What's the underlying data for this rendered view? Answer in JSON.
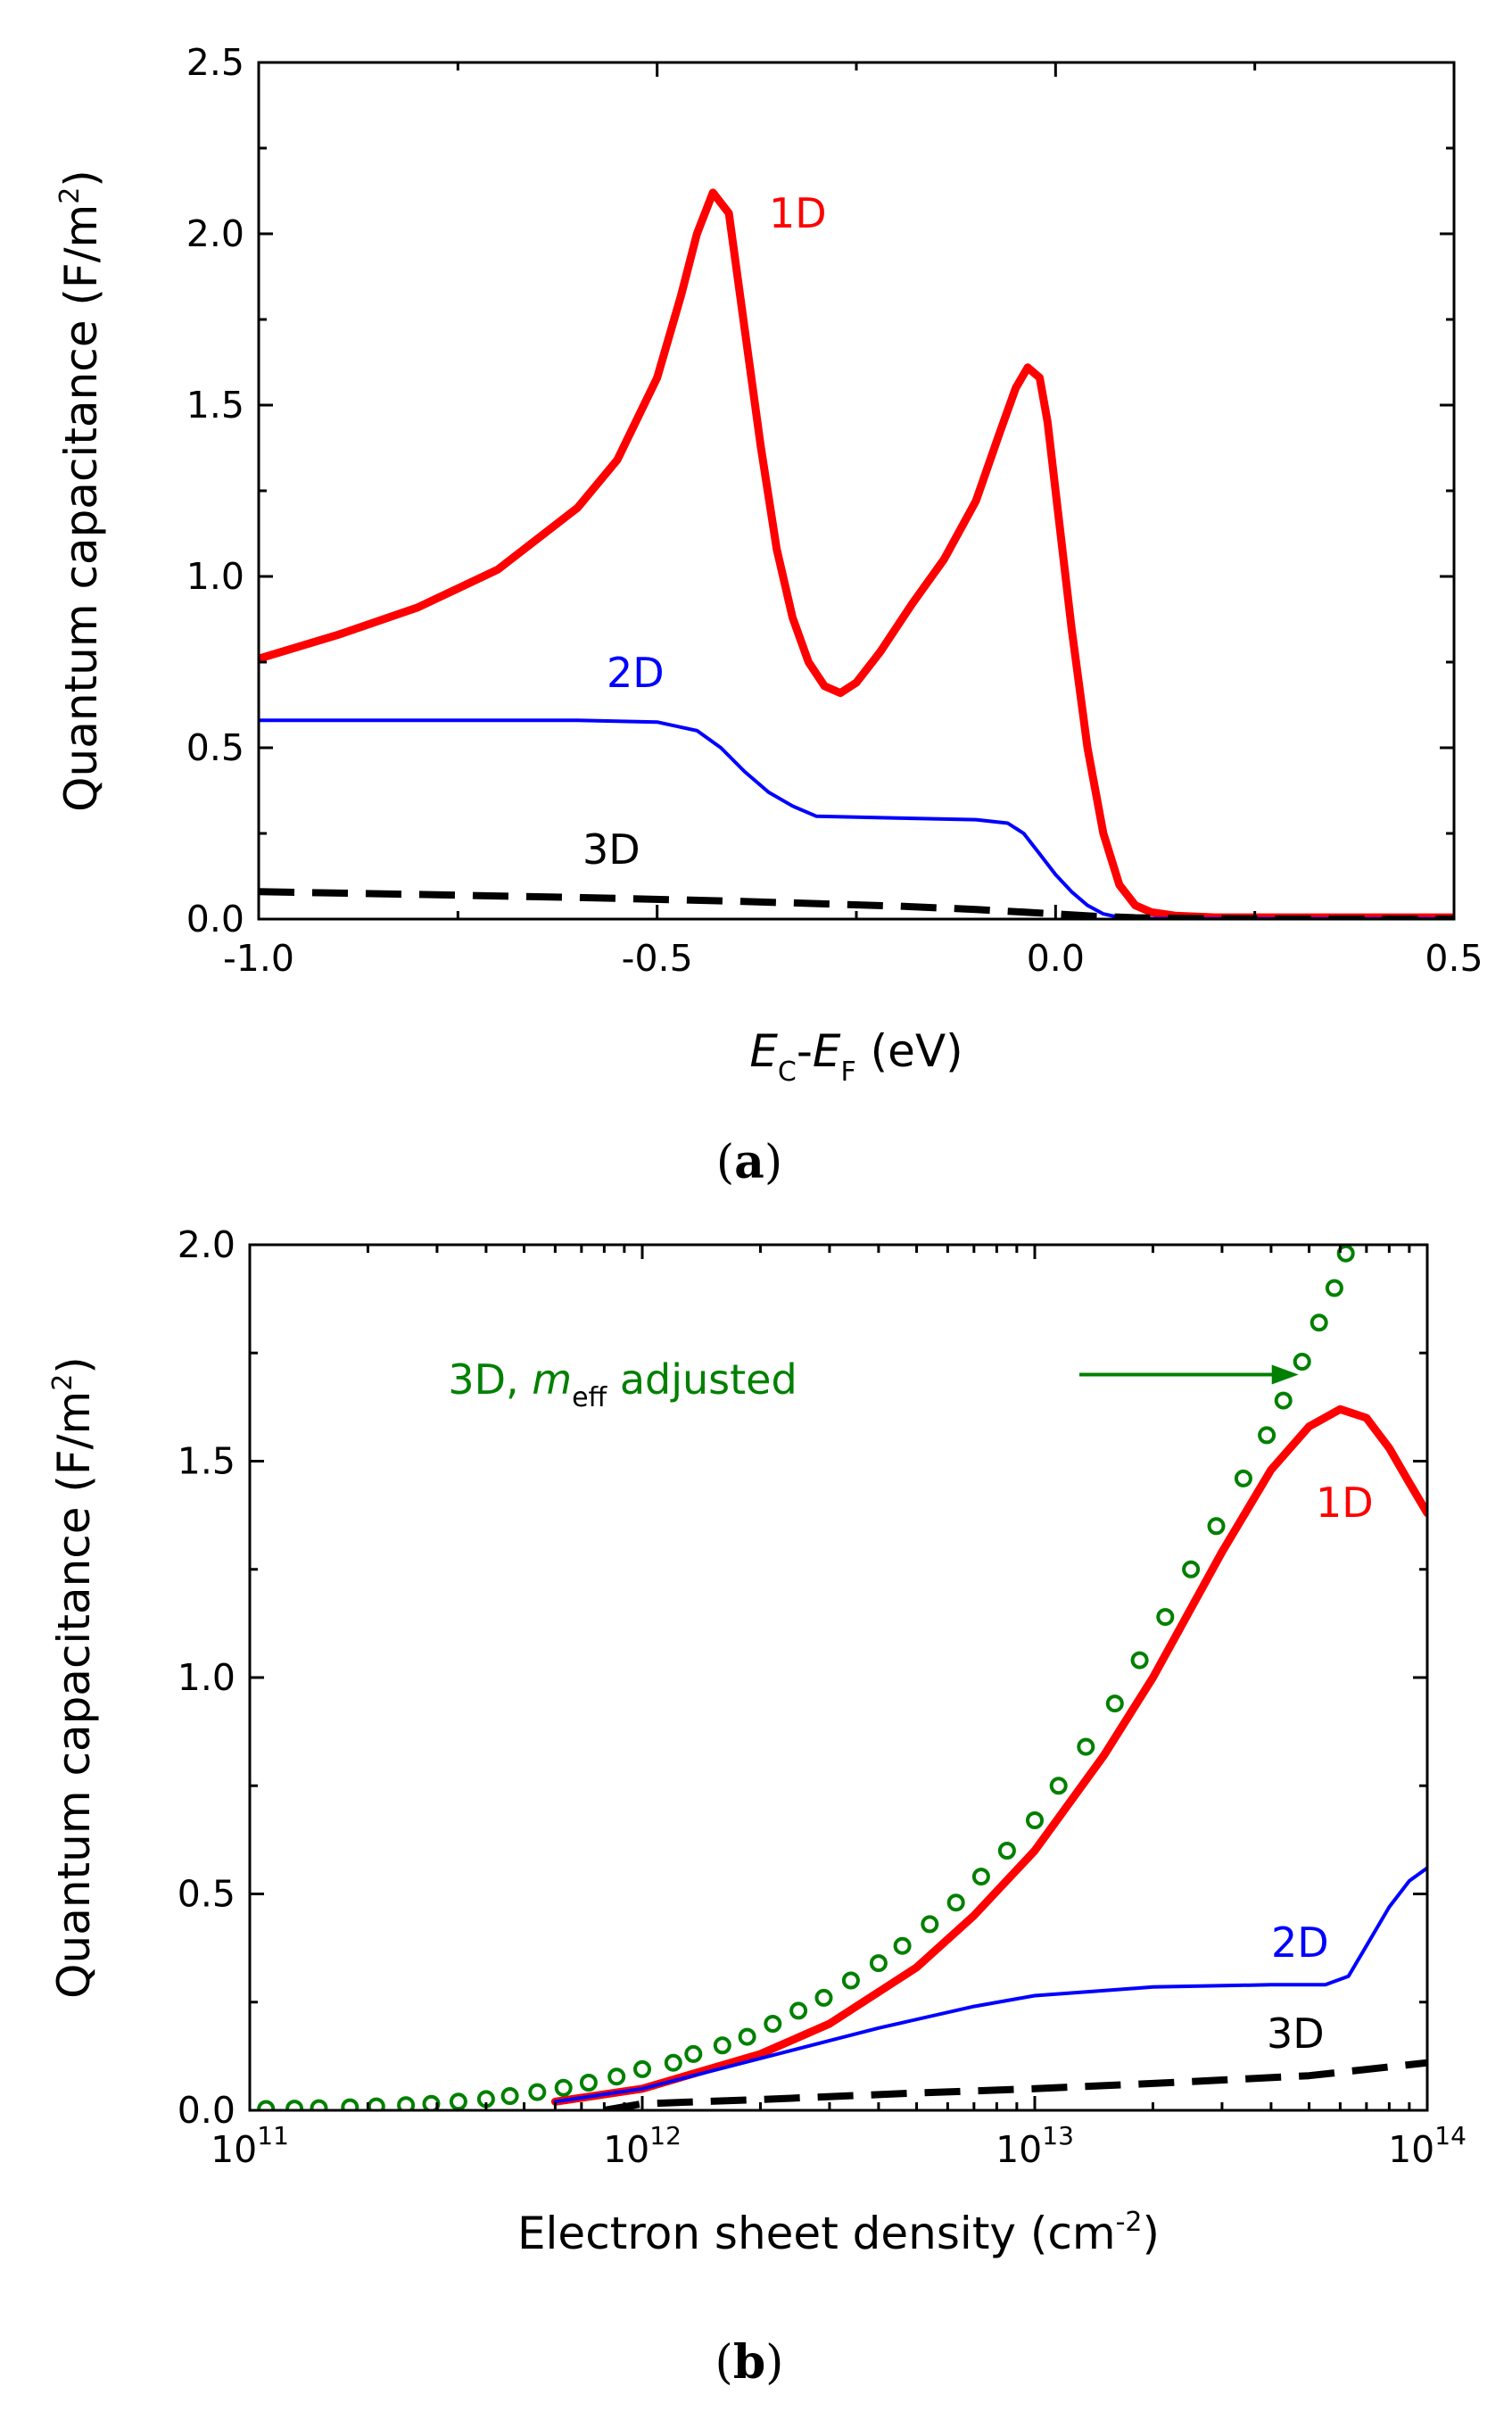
{
  "chart_data": [
    {
      "panel_label": "a",
      "type": "line",
      "xlabel": {
        "e1": "E",
        "s1": "C",
        "mid": "-",
        "e2": "E",
        "s2": "F",
        "unit": " (eV)"
      },
      "ylabel": {
        "main": "Quantum capacitance (F/m",
        "sup": "2",
        "close": ")"
      },
      "xlim": [
        -1.0,
        0.5
      ],
      "ylim": [
        0.0,
        2.5
      ],
      "x_ticks": [
        -1.0,
        -0.5,
        0.0,
        0.5
      ],
      "x_tick_labels": [
        "-1.0",
        "-0.5",
        "0.0",
        "0.5"
      ],
      "y_ticks": [
        0.0,
        0.5,
        1.0,
        1.5,
        2.0,
        2.5
      ],
      "y_tick_labels": [
        "0.0",
        "0.5",
        "1.0",
        "1.5",
        "2.0",
        "2.5"
      ],
      "series": [
        {
          "name": "1D",
          "color": "#ff0000",
          "style": "solid",
          "x": [
            -1.0,
            -0.9,
            -0.8,
            -0.7,
            -0.6,
            -0.55,
            -0.5,
            -0.47,
            -0.45,
            -0.43,
            -0.41,
            -0.39,
            -0.37,
            -0.35,
            -0.33,
            -0.31,
            -0.29,
            -0.27,
            -0.25,
            -0.22,
            -0.18,
            -0.14,
            -0.1,
            -0.07,
            -0.05,
            -0.035,
            -0.02,
            -0.01,
            0.0,
            0.02,
            0.04,
            0.06,
            0.08,
            0.1,
            0.12,
            0.15,
            0.2,
            0.3,
            0.4,
            0.5
          ],
          "y": [
            0.76,
            0.83,
            0.91,
            1.02,
            1.2,
            1.34,
            1.58,
            1.82,
            2.0,
            2.12,
            2.06,
            1.72,
            1.38,
            1.08,
            0.88,
            0.75,
            0.68,
            0.66,
            0.69,
            0.78,
            0.92,
            1.05,
            1.22,
            1.42,
            1.55,
            1.61,
            1.58,
            1.45,
            1.25,
            0.85,
            0.5,
            0.25,
            0.1,
            0.04,
            0.02,
            0.01,
            0.005,
            0.005,
            0.005,
            0.005
          ]
        },
        {
          "name": "2D",
          "color": "#0000ff",
          "style": "solid",
          "x": [
            -1.0,
            -0.8,
            -0.6,
            -0.5,
            -0.45,
            -0.42,
            -0.39,
            -0.36,
            -0.33,
            -0.3,
            -0.2,
            -0.1,
            -0.06,
            -0.04,
            -0.02,
            0.0,
            0.02,
            0.04,
            0.06,
            0.08,
            0.1,
            0.15,
            0.3,
            0.5
          ],
          "y": [
            0.58,
            0.58,
            0.58,
            0.575,
            0.55,
            0.5,
            0.43,
            0.37,
            0.33,
            0.3,
            0.295,
            0.29,
            0.28,
            0.25,
            0.19,
            0.13,
            0.08,
            0.04,
            0.015,
            0.005,
            0.002,
            0.001,
            0.001,
            0.001
          ]
        },
        {
          "name": "3D",
          "color": "#000000",
          "style": "dashed",
          "x": [
            -1.0,
            -0.8,
            -0.6,
            -0.4,
            -0.2,
            -0.1,
            0.0,
            0.05,
            0.1,
            0.2,
            0.3,
            0.5
          ],
          "y": [
            0.08,
            0.072,
            0.063,
            0.052,
            0.038,
            0.028,
            0.015,
            0.008,
            0.004,
            0.001,
            0.0,
            0.0
          ]
        }
      ]
    },
    {
      "panel_label": "b",
      "type": "line",
      "xscale": "log",
      "xlabel": {
        "main": "Electron sheet density (cm",
        "sup": "-2",
        "close": ")"
      },
      "ylabel": {
        "main": "Quantum capacitance (F/m",
        "sup": "2",
        "close": ")"
      },
      "xlim": [
        100000000000.0,
        100000000000000.0
      ],
      "ylim": [
        0.0,
        2.0
      ],
      "x_ticks": [
        100000000000.0,
        1000000000000.0,
        10000000000000.0,
        100000000000000.0
      ],
      "x_tick_labels": [
        {
          "base": "10",
          "exp": "11"
        },
        {
          "base": "10",
          "exp": "12"
        },
        {
          "base": "10",
          "exp": "13"
        },
        {
          "base": "10",
          "exp": "14"
        }
      ],
      "y_ticks": [
        0.0,
        0.5,
        1.0,
        1.5,
        2.0
      ],
      "y_tick_labels": [
        "0.0",
        "0.5",
        "1.0",
        "1.5",
        "2.0"
      ],
      "annotation": {
        "pre": "3D, ",
        "m": "m",
        "sub": "eff",
        "post": " adjusted",
        "arrow_to_x": 47000000000000.0,
        "arrow_to_y": 1.7
      },
      "series": [
        {
          "name": "1D",
          "color": "#ff0000",
          "style": "solid",
          "x": [
            600000000000.0,
            1000000000000.0,
            2000000000000.0,
            3000000000000.0,
            5000000000000.0,
            7000000000000.0,
            10000000000000.0,
            15000000000000.0,
            20000000000000.0,
            30000000000000.0,
            40000000000000.0,
            50000000000000.0,
            60000000000000.0,
            70000000000000.0,
            80000000000000.0,
            90000000000000.0,
            100000000000000.0
          ],
          "y": [
            0.02,
            0.05,
            0.13,
            0.2,
            0.33,
            0.45,
            0.6,
            0.82,
            1.0,
            1.29,
            1.48,
            1.58,
            1.62,
            1.6,
            1.53,
            1.45,
            1.38
          ]
        },
        {
          "name": "2D",
          "color": "#0000ff",
          "style": "solid",
          "x": [
            600000000000.0,
            1000000000000.0,
            2000000000000.0,
            4000000000000.0,
            7000000000000.0,
            10000000000000.0,
            20000000000000.0,
            40000000000000.0,
            55000000000000.0,
            63000000000000.0,
            70000000000000.0,
            80000000000000.0,
            90000000000000.0,
            100000000000000.0
          ],
          "y": [
            0.02,
            0.05,
            0.12,
            0.19,
            0.24,
            0.265,
            0.285,
            0.29,
            0.29,
            0.31,
            0.38,
            0.47,
            0.53,
            0.56
          ]
        },
        {
          "name": "3D",
          "color": "#000000",
          "style": "dashed",
          "x": [
            800000000000.0,
            1000000000000.0,
            2000000000000.0,
            5000000000000.0,
            10000000000000.0,
            20000000000000.0,
            50000000000000.0,
            100000000000000.0
          ],
          "y": [
            0.0,
            0.015,
            0.025,
            0.04,
            0.05,
            0.062,
            0.08,
            0.11
          ]
        },
        {
          "name": "3D, meff adjusted",
          "color": "#008000",
          "style": "circles",
          "x": [
            110000000000.0,
            130000000000.0,
            150000000000.0,
            180000000000.0,
            210000000000.0,
            250000000000.0,
            290000000000.0,
            340000000000.0,
            400000000000.0,
            460000000000.0,
            540000000000.0,
            630000000000.0,
            730000000000.0,
            860000000000.0,
            1000000000000.0,
            1200000000000.0,
            1350000000000.0,
            1600000000000.0,
            1850000000000.0,
            2150000000000.0,
            2500000000000.0,
            2900000000000.0,
            3400000000000.0,
            4000000000000.0,
            4600000000000.0,
            5400000000000.0,
            6300000000000.0,
            7300000000000.0,
            8500000000000.0,
            10000000000000.0,
            11500000000000.0,
            13500000000000.0,
            16000000000000.0,
            18500000000000.0,
            21500000000000.0,
            25000000000000.0,
            29000000000000.0,
            34000000000000.0,
            39000000000000.0,
            43000000000000.0,
            48000000000000.0,
            53000000000000.0,
            58000000000000.0,
            62000000000000.0
          ],
          "y": [
            0.003,
            0.004,
            0.005,
            0.007,
            0.009,
            0.012,
            0.015,
            0.02,
            0.026,
            0.033,
            0.042,
            0.052,
            0.064,
            0.078,
            0.095,
            0.11,
            0.13,
            0.15,
            0.17,
            0.2,
            0.23,
            0.26,
            0.3,
            0.34,
            0.38,
            0.43,
            0.48,
            0.54,
            0.6,
            0.67,
            0.75,
            0.84,
            0.94,
            1.04,
            1.14,
            1.25,
            1.35,
            1.46,
            1.56,
            1.64,
            1.73,
            1.82,
            1.9,
            1.98
          ]
        }
      ]
    }
  ]
}
